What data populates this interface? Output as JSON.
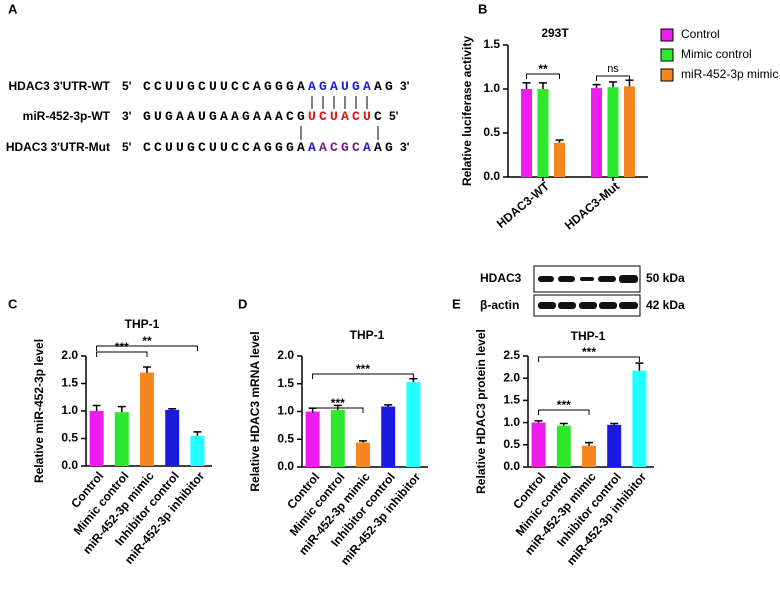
{
  "sequence_panel": {
    "panel_label": "A",
    "rows": [
      {
        "label": "HDAC3 3'UTR-WT",
        "start": "5'",
        "end": "3'",
        "segments": [
          {
            "text": "CCUUGCUUCCAGGGA",
            "color": "#000000"
          },
          {
            "text": "AGAUGA",
            "color": "#1a1adc"
          },
          {
            "text": "AG",
            "color": "#000000"
          }
        ]
      },
      {
        "label": "miR-452-3p-WT",
        "start": "3'",
        "end": "5'",
        "segments": [
          {
            "text": "GUGAAUGAAGAAACG",
            "color": "#000000"
          },
          {
            "text": "UCUACU",
            "color": "#e01010"
          },
          {
            "text": "C",
            "color": "#000000"
          }
        ]
      },
      {
        "label": "HDAC3 3'UTR-Mut",
        "start": "5'",
        "end": "3'",
        "segments": [
          {
            "text": "CCUUGCUUCCAGGGA",
            "color": "#000000"
          },
          {
            "text": "A",
            "color": "#1a1adc"
          },
          {
            "text": "ACGC",
            "color": "#7a1a8c"
          },
          {
            "text": "A",
            "color": "#1a1adc"
          },
          {
            "text": "AG",
            "color": "#000000"
          }
        ]
      }
    ]
  },
  "blot": {
    "rows": [
      {
        "protein": "HDAC3",
        "size": "50 kDa"
      },
      {
        "protein": "β-actin",
        "size": "42 kDa"
      }
    ]
  },
  "chart_data": [
    {
      "type": "grouped-bar",
      "panel_label": "B",
      "title": "293T",
      "ylabel": "Relative luciferase activity",
      "categories": [
        "HDAC3-WT",
        "HDAC3-Mut"
      ],
      "series": [
        {
          "name": "Control",
          "color": "#ee1cee",
          "values": [
            1.0,
            1.01
          ],
          "errors": [
            0.07,
            0.04
          ]
        },
        {
          "name": "Mimic control",
          "color": "#2ee82e",
          "values": [
            1.0,
            1.02
          ],
          "errors": [
            0.07,
            0.06
          ]
        },
        {
          "name": "miR-452-3p mimic",
          "color": "#f7861e",
          "values": [
            0.39,
            1.03
          ],
          "errors": [
            0.03,
            0.07
          ]
        }
      ],
      "ylim": [
        0,
        1.5
      ],
      "yticks": [
        {
          "value": 0,
          "label": "0.0"
        },
        {
          "value": 0.5,
          "label": "0.5"
        },
        {
          "value": 1,
          "label": "1.0"
        },
        {
          "value": 1.5,
          "label": "1.5"
        }
      ],
      "annotations": [
        {
          "text": "**"
        },
        {
          "text": "ns"
        }
      ],
      "legend": "right"
    },
    {
      "type": "bar",
      "panel_label": "C",
      "title": "THP-1",
      "ylabel": "Relative miR-452-3p level",
      "categories": [
        "Control",
        "Mimic control",
        "miR-452-3p mimic",
        "Inhibitor control",
        "miR-452-3p inhibitor"
      ],
      "values": [
        1.0,
        0.98,
        1.7,
        1.02,
        0.55
      ],
      "errors": [
        0.1,
        0.1,
        0.1,
        0.02,
        0.07
      ],
      "colors": [
        "#ee1cee",
        "#2ee82e",
        "#f7861e",
        "#1a1ae0",
        "#22ffff"
      ],
      "ylim": [
        0,
        2
      ],
      "yticks": [
        {
          "value": 0,
          "label": "0.0"
        },
        {
          "value": 0.5,
          "label": "0.5"
        },
        {
          "value": 1,
          "label": "1.0"
        },
        {
          "value": 1.5,
          "label": "1.5"
        },
        {
          "value": 2,
          "label": "2.0"
        }
      ],
      "annotations": [
        {
          "text": "***"
        },
        {
          "text": "**"
        }
      ]
    },
    {
      "type": "bar",
      "panel_label": "D",
      "title": "THP-1",
      "ylabel": "Relative HDAC3 mRNA level",
      "categories": [
        "Control",
        "Mimic control",
        "miR-452-3p mimic",
        "Inhibitor control",
        "miR-452-3p inhibitor"
      ],
      "values": [
        1.0,
        1.03,
        0.44,
        1.09,
        1.53
      ],
      "errors": [
        0.06,
        0.08,
        0.03,
        0.03,
        0.06
      ],
      "colors": [
        "#ee1cee",
        "#2ee82e",
        "#f7861e",
        "#1a1ae0",
        "#22ffff"
      ],
      "ylim": [
        0,
        2
      ],
      "yticks": [
        {
          "value": 0,
          "label": "0.0"
        },
        {
          "value": 0.5,
          "label": "0.5"
        },
        {
          "value": 1,
          "label": "1.0"
        },
        {
          "value": 1.5,
          "label": "1.5"
        },
        {
          "value": 2,
          "label": "2.0"
        }
      ],
      "annotations": [
        {
          "text": "***"
        },
        {
          "text": "***"
        }
      ]
    },
    {
      "type": "bar",
      "panel_label": "E",
      "title": "THP-1",
      "ylabel": "Relative HDAC3 protein level",
      "categories": [
        "Control",
        "Mimic control",
        "miR-452-3p mimic",
        "Inhibitor control",
        "miR-452-3p inhibitor"
      ],
      "values": [
        1.0,
        0.93,
        0.48,
        0.95,
        2.17
      ],
      "errors": [
        0.04,
        0.05,
        0.07,
        0.03,
        0.17
      ],
      "colors": [
        "#ee1cee",
        "#2ee82e",
        "#f7861e",
        "#1a1ae0",
        "#22ffff"
      ],
      "ylim": [
        0,
        2.5
      ],
      "yticks": [
        {
          "value": 0,
          "label": "0.0"
        },
        {
          "value": 0.5,
          "label": "0.5"
        },
        {
          "value": 1,
          "label": "1.0"
        },
        {
          "value": 1.5,
          "label": "1.5"
        },
        {
          "value": 2,
          "label": "2.0"
        },
        {
          "value": 2.5,
          "label": "2.5"
        }
      ],
      "annotations": [
        {
          "text": "***"
        },
        {
          "text": "***"
        }
      ]
    }
  ]
}
